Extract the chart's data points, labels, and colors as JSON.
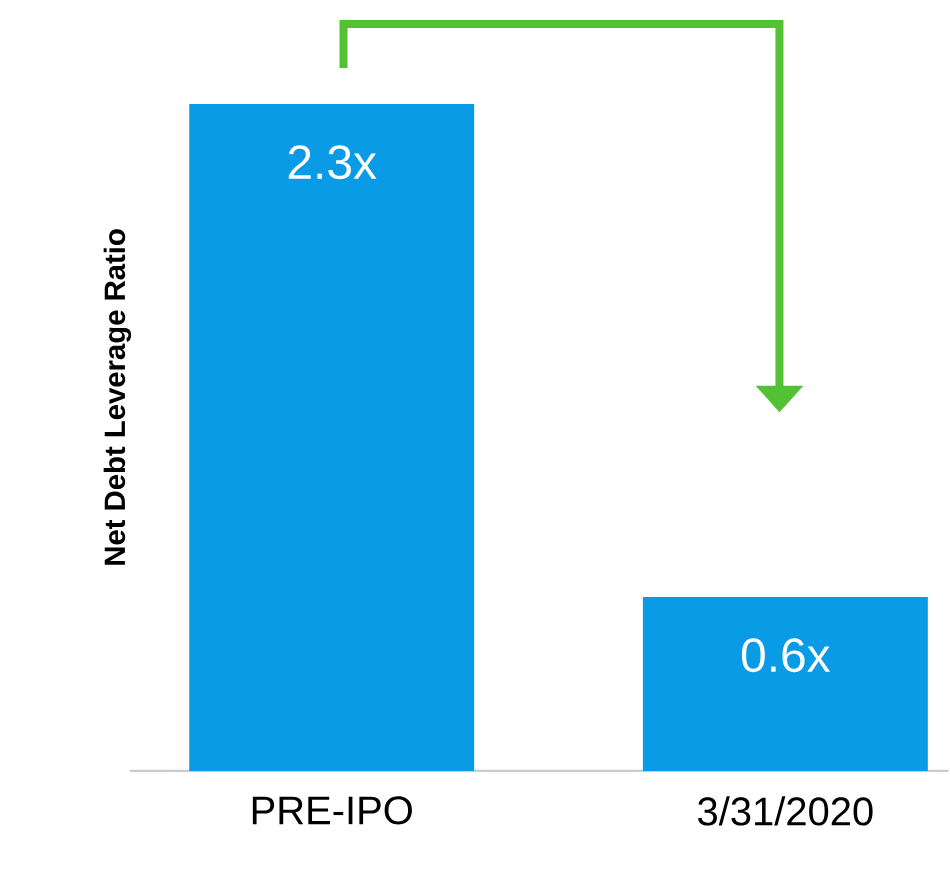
{
  "chart_data": {
    "type": "bar",
    "ylabel": "Net Debt Leverage Ratio",
    "categories": [
      "PRE-IPO",
      "3/31/2020"
    ],
    "values": [
      2.3,
      0.6
    ],
    "value_labels": [
      "2.3x",
      "0.6x"
    ],
    "color": "#0a9be6"
  }
}
